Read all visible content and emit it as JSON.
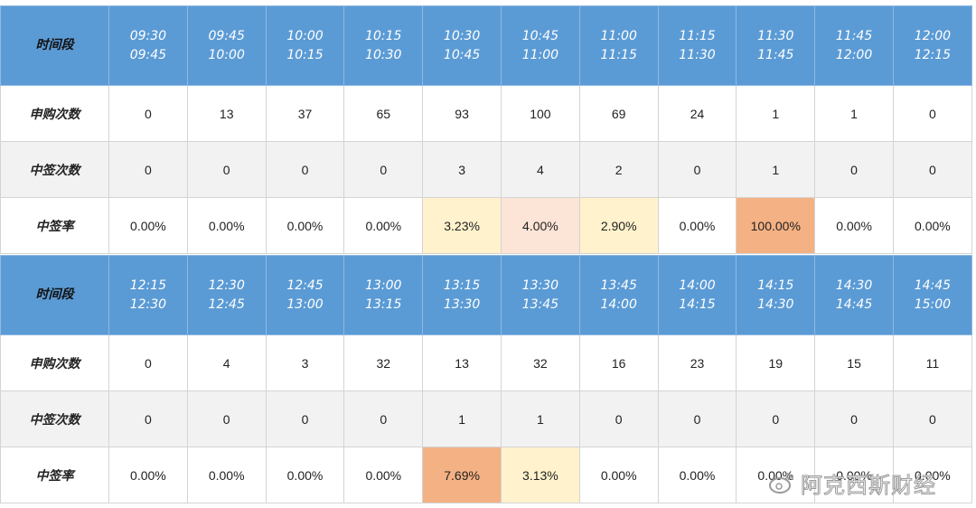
{
  "chart_data": {
    "type": "table",
    "rows_labels": {
      "time": "时间段",
      "applications": "申购次数",
      "wins": "中签次数",
      "rate": "中签率"
    },
    "colors": {
      "header_bg": "#5b9bd5",
      "row_gray": "#f2f2f2",
      "rate_low": "#fff2cc",
      "rate_mid": "#fce4d6",
      "rate_high": "#f4b183",
      "rate_top": "#f4b183"
    },
    "blocks": [
      {
        "slots": [
          [
            "09:30",
            "09:45"
          ],
          [
            "09:45",
            "10:00"
          ],
          [
            "10:00",
            "10:15"
          ],
          [
            "10:15",
            "10:30"
          ],
          [
            "10:30",
            "10:45"
          ],
          [
            "10:45",
            "11:00"
          ],
          [
            "11:00",
            "11:15"
          ],
          [
            "11:15",
            "11:30"
          ],
          [
            "11:30",
            "11:45"
          ],
          [
            "11:45",
            "12:00"
          ],
          [
            "12:00",
            "12:15"
          ]
        ],
        "applications": [
          "0",
          "13",
          "37",
          "65",
          "93",
          "100",
          "69",
          "24",
          "1",
          "1",
          "0"
        ],
        "wins": [
          "0",
          "0",
          "0",
          "0",
          "3",
          "4",
          "2",
          "0",
          "1",
          "0",
          "0"
        ],
        "rate": [
          "0.00%",
          "0.00%",
          "0.00%",
          "0.00%",
          "3.23%",
          "4.00%",
          "2.90%",
          "0.00%",
          "100.00%",
          "0.00%",
          "0.00%"
        ],
        "rate_highlight": [
          "",
          "",
          "",
          "",
          "low",
          "mid",
          "low",
          "",
          "top",
          "",
          ""
        ]
      },
      {
        "slots": [
          [
            "12:15",
            "12:30"
          ],
          [
            "12:30",
            "12:45"
          ],
          [
            "12:45",
            "13:00"
          ],
          [
            "13:00",
            "13:15"
          ],
          [
            "13:15",
            "13:30"
          ],
          [
            "13:30",
            "13:45"
          ],
          [
            "13:45",
            "14:00"
          ],
          [
            "14:00",
            "14:15"
          ],
          [
            "14:15",
            "14:30"
          ],
          [
            "14:30",
            "14:45"
          ],
          [
            "14:45",
            "15:00"
          ]
        ],
        "applications": [
          "0",
          "4",
          "3",
          "32",
          "13",
          "32",
          "16",
          "23",
          "19",
          "15",
          "11"
        ],
        "wins": [
          "0",
          "0",
          "0",
          "0",
          "1",
          "1",
          "0",
          "0",
          "0",
          "0",
          "0"
        ],
        "rate": [
          "0.00%",
          "0.00%",
          "0.00%",
          "0.00%",
          "7.69%",
          "3.13%",
          "0.00%",
          "0.00%",
          "0.00%",
          "0.00%",
          "0.00%"
        ],
        "rate_highlight": [
          "",
          "",
          "",
          "",
          "high",
          "low",
          "",
          "",
          "",
          "",
          ""
        ]
      }
    ]
  },
  "watermark": {
    "text": "阿克西斯财经",
    "icon": "weibo-logo"
  }
}
